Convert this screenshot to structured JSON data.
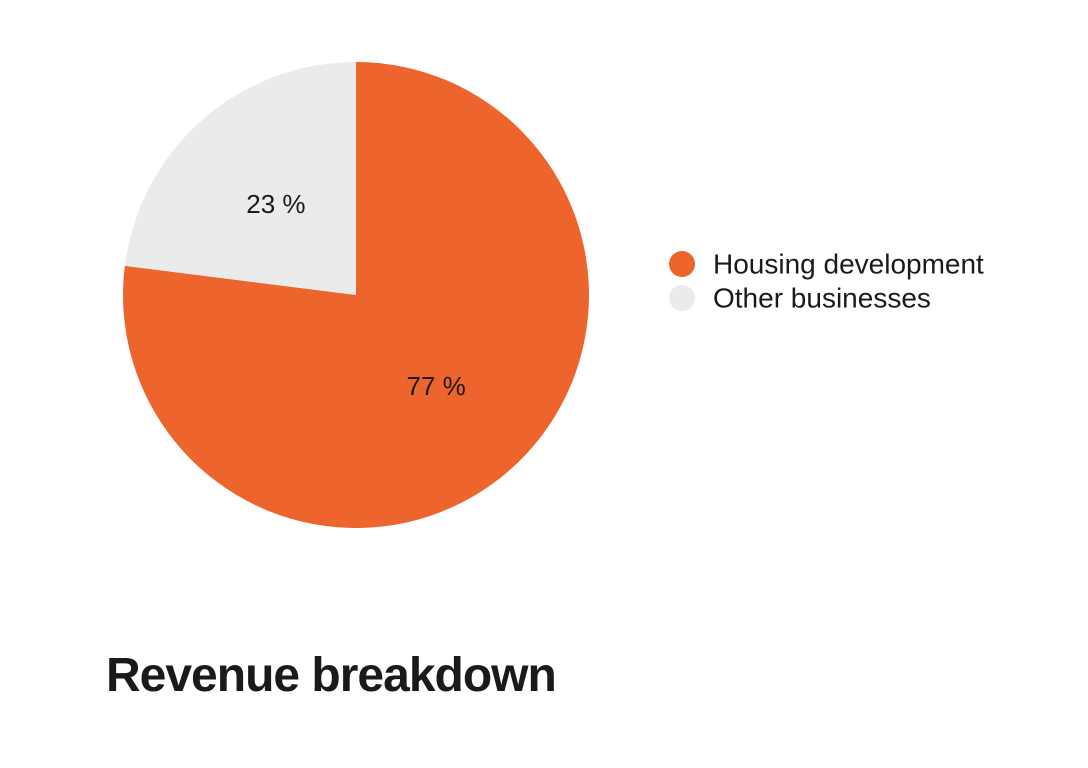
{
  "chart_data": {
    "type": "pie",
    "title": "Revenue breakdown",
    "slices": [
      {
        "name": "Housing development",
        "value": 77,
        "label": "77 %",
        "color": "#EE642D"
      },
      {
        "name": "Other businesses",
        "value": 23,
        "label": "23 %",
        "color": "#EBEBEB"
      }
    ],
    "start": "12 o'clock",
    "direction": "clockwise",
    "legend": {
      "placement": "right",
      "entries": [
        "Housing development",
        "Other businesses"
      ]
    }
  }
}
